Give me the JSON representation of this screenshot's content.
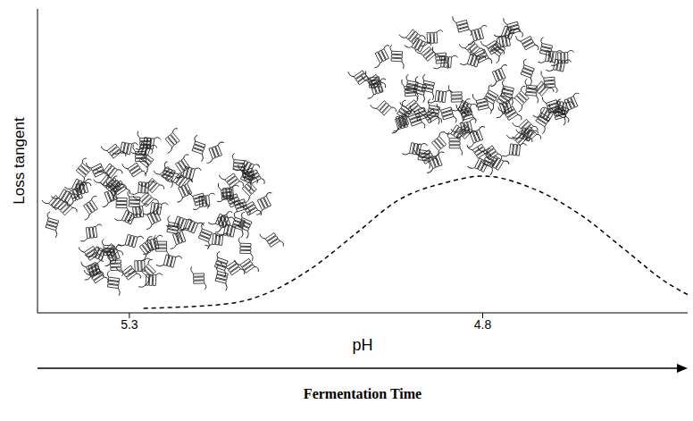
{
  "chart_data": {
    "type": "line",
    "x_label": "pH",
    "y_label": "Loss tangent",
    "annotation": "Fermentation Time",
    "x": [
      5.28,
      5.16,
      5.11,
      5.04,
      4.98,
      4.92,
      4.85,
      4.8,
      4.73,
      4.66,
      4.6,
      4.54,
      4.51
    ],
    "values": [
      0.015,
      0.03,
      0.06,
      0.15,
      0.26,
      0.37,
      0.43,
      0.45,
      0.41,
      0.32,
      0.21,
      0.1,
      0.06
    ],
    "color": "#000000",
    "line_style": "dashed",
    "marker": "none",
    "xlim": [
      5.43,
      4.51
    ],
    "xticks": [
      5.3,
      4.8
    ],
    "ylim": [
      0,
      1
    ],
    "tick_labels": "x",
    "grid": false
  }
}
